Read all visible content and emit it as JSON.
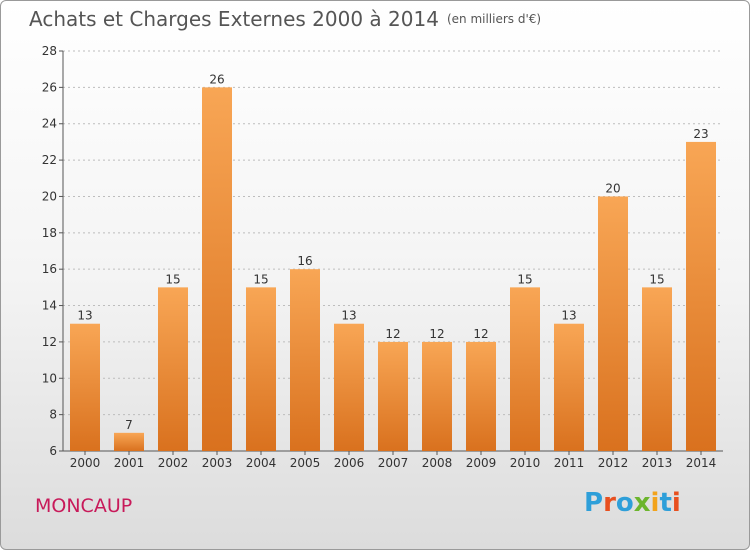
{
  "title": "Achats et Charges Externes 2000 à 2014",
  "subtitle": "(en milliers d'€)",
  "commune": "MONCAUP",
  "logo": {
    "text": "Proxiti",
    "colors": [
      "#2e9fd9",
      "#e8501f",
      "#2e9fd9",
      "#6cb52d",
      "#f2a31b",
      "#2e9fd9",
      "#e8501f"
    ]
  },
  "colors": {
    "bar_light": "#f8a655",
    "bar_dark": "#d9711e",
    "title": "#555555",
    "commune": "#c81a5a"
  },
  "chart_data": {
    "type": "bar",
    "categories": [
      "2000",
      "2001",
      "2002",
      "2003",
      "2004",
      "2005",
      "2006",
      "2007",
      "2008",
      "2009",
      "2010",
      "2011",
      "2012",
      "2013",
      "2014"
    ],
    "values": [
      13,
      7,
      15,
      26,
      15,
      16,
      13,
      12,
      12,
      12,
      15,
      13,
      20,
      15,
      23
    ],
    "ylim": [
      6,
      28
    ],
    "yticks": [
      6,
      8,
      10,
      12,
      14,
      16,
      18,
      20,
      22,
      24,
      26,
      28
    ],
    "grid": true,
    "title": "Achats et Charges Externes 2000 à 2014",
    "ylabel": "",
    "xlabel": ""
  }
}
